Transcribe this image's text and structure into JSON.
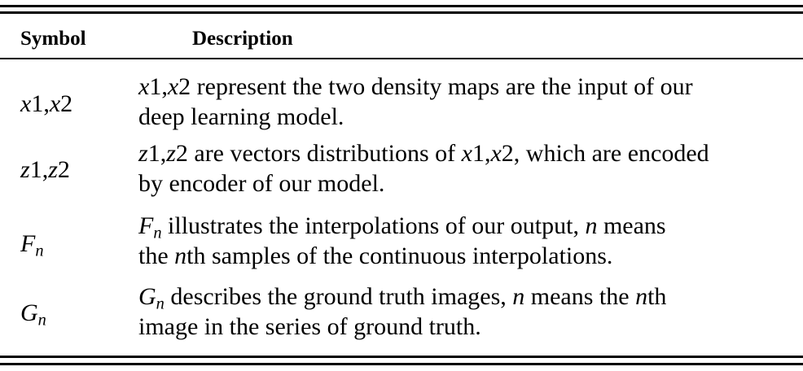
{
  "table": {
    "header": {
      "symbol": "Symbol",
      "description": "Description"
    },
    "rows": [
      {
        "symbol": {
          "a": "x",
          "b": "1",
          "c": ",",
          "d": "x",
          "e": "2"
        },
        "line1": {
          "a": "x",
          "b": "1",
          "c": ",",
          "d": "x",
          "e": "2",
          "f": " represent the two density maps are the input of our"
        },
        "line2": "deep learning model."
      },
      {
        "symbol": {
          "a": "z",
          "b": "1",
          "c": ",",
          "d": "z",
          "e": "2"
        },
        "line1": {
          "a": "z",
          "b": "1",
          "c": ",",
          "d": "z",
          "e": "2",
          "f": " are vectors distributions of ",
          "g": "x",
          "h": "1",
          "i": ",",
          "j": "x",
          "k": "2",
          "l": ", which are encoded"
        },
        "line2": "by encoder of our model."
      },
      {
        "symbol": {
          "base": "F",
          "sub": "n"
        },
        "line1": {
          "base": "F",
          "sub": "n",
          "t1": " illustrates the interpolations of our output, ",
          "n": "n",
          "t2": " means"
        },
        "line2": {
          "t1": "the ",
          "n": "n",
          "t2": "th samples of the continuous interpolations."
        }
      },
      {
        "symbol": {
          "base": "G",
          "sub": "n"
        },
        "line1": {
          "base": "G",
          "sub": "n",
          "t1": " describes the ground truth images, ",
          "n1": "n",
          "t2": " means the ",
          "n2": "n",
          "t3": "th"
        },
        "line2": "image in the series of ground truth."
      }
    ]
  }
}
